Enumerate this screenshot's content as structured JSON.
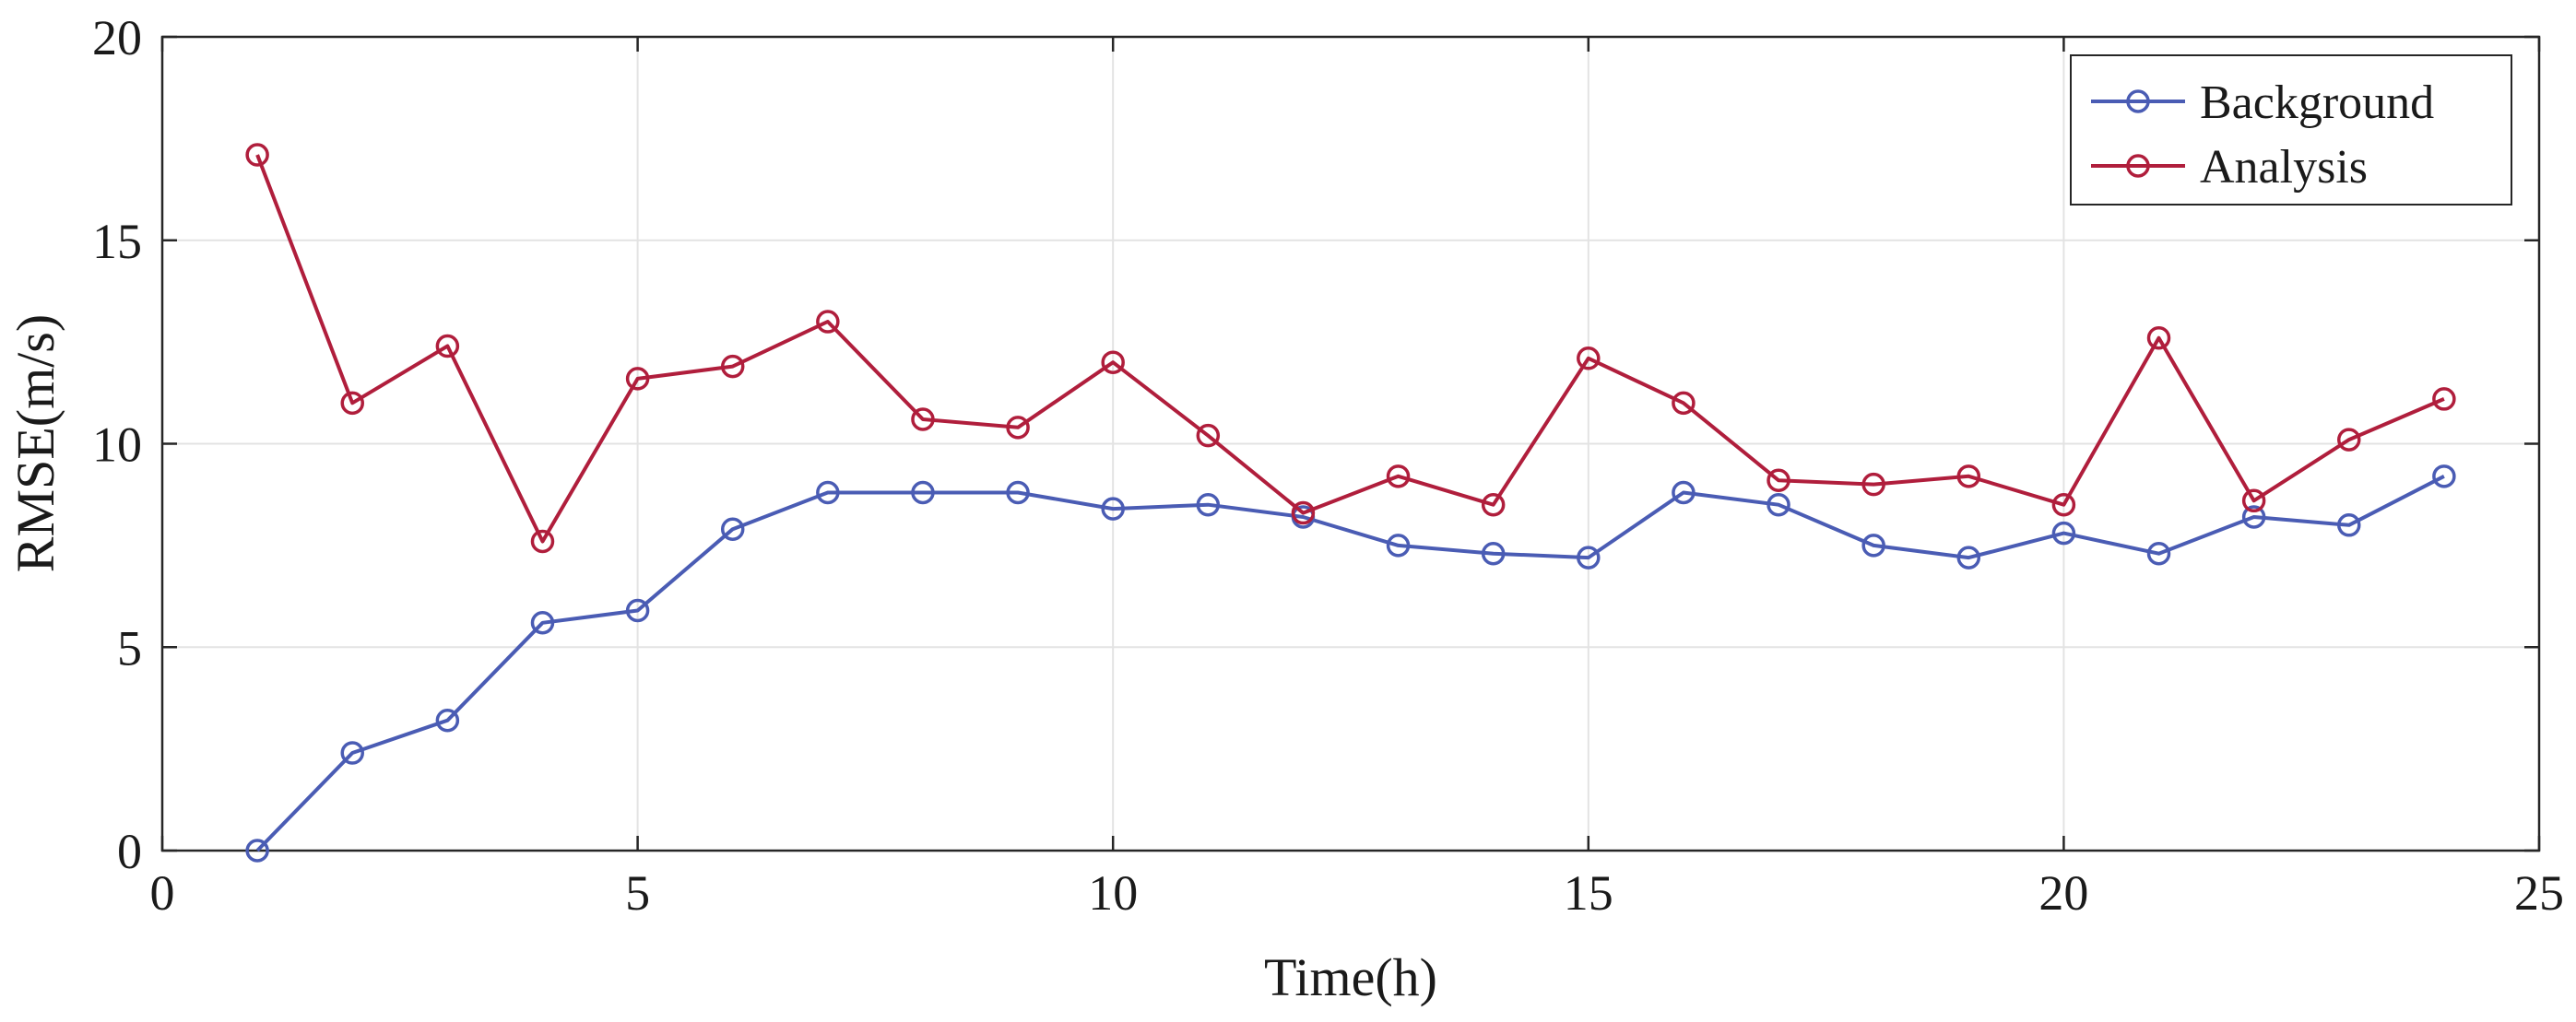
{
  "chart_data": {
    "type": "line",
    "title": "",
    "xlabel": "Time(h)",
    "ylabel": "RMSE(m/s)",
    "xlim": [
      0,
      25
    ],
    "ylim": [
      0,
      20
    ],
    "xticks": [
      "0",
      "5",
      "10",
      "15",
      "20",
      "25"
    ],
    "yticks": [
      "0",
      "5",
      "10",
      "15",
      "20"
    ],
    "grid": true,
    "legend_position": "top-right",
    "x": [
      1,
      2,
      3,
      4,
      5,
      6,
      7,
      8,
      9,
      10,
      11,
      12,
      13,
      14,
      15,
      16,
      17,
      18,
      19,
      20,
      21,
      22,
      23,
      24
    ],
    "series": [
      {
        "name": "Background",
        "color": "#4a5cb4",
        "marker": "circle",
        "values": [
          0.0,
          2.4,
          3.2,
          5.6,
          5.9,
          7.9,
          8.8,
          8.8,
          8.8,
          8.4,
          8.5,
          8.2,
          7.5,
          7.3,
          7.2,
          8.8,
          8.5,
          7.5,
          7.2,
          7.8,
          7.3,
          8.2,
          8.0,
          9.2
        ]
      },
      {
        "name": "Analysis",
        "color": "#b01e3c",
        "marker": "circle",
        "values": [
          17.1,
          11.0,
          12.4,
          7.6,
          11.6,
          11.9,
          13.0,
          10.6,
          10.4,
          12.0,
          10.2,
          8.3,
          9.2,
          8.5,
          12.1,
          11.0,
          9.1,
          9.0,
          9.2,
          8.5,
          12.6,
          8.6,
          10.1,
          11.1
        ]
      }
    ]
  }
}
